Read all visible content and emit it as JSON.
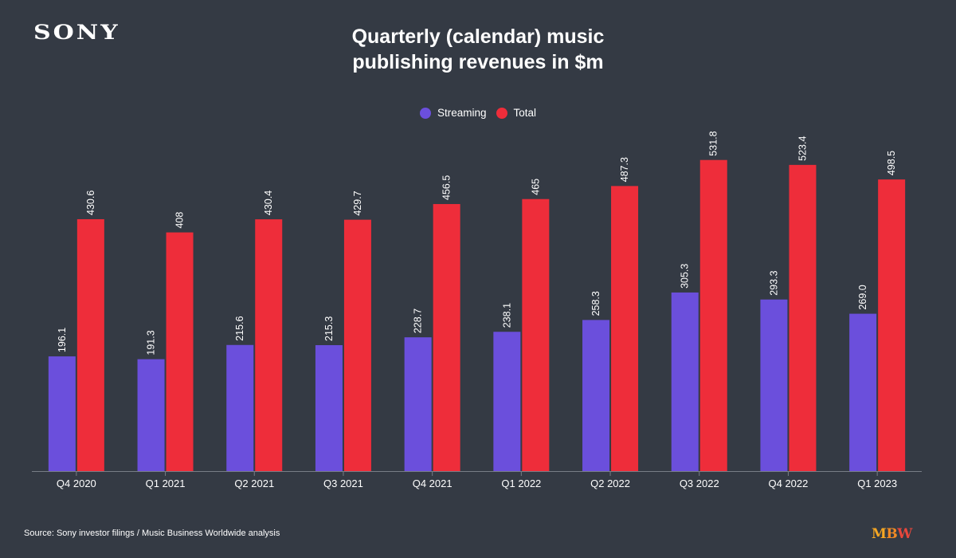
{
  "brand": {
    "logo_text": "SONY"
  },
  "footer": {
    "source": "Source: Sony investor filings / Music Business Worldwide analysis",
    "publisher_logo": [
      "M",
      "B",
      "W"
    ]
  },
  "colors": {
    "background": "#343a44",
    "streaming": "#6b4fdc",
    "total": "#ee2d3a",
    "axis": "#777d86"
  },
  "chart_data": {
    "type": "bar",
    "title_lines": [
      "Quarterly (calendar) music",
      "publishing revenues in $m"
    ],
    "xlabel": "",
    "ylabel": "",
    "ylim": [
      0,
      560
    ],
    "grid": false,
    "legend_position": "top-center",
    "categories": [
      "Q4 2020",
      "Q1 2021",
      "Q2 2021",
      "Q3 2021",
      "Q4 2021",
      "Q1 2022",
      "Q2 2022",
      "Q3 2022",
      "Q4 2022",
      "Q1 2023"
    ],
    "series": [
      {
        "name": "Streaming",
        "color": "#6b4fdc",
        "values": [
          196.1,
          191.3,
          215.6,
          215.3,
          228.7,
          238.1,
          258.3,
          305.3,
          293.3,
          269.0
        ],
        "labels": [
          "196.1",
          "191.3",
          "215.6",
          "215.3",
          "228.7",
          "238.1",
          "258.3",
          "305.3",
          "293.3",
          "269.0"
        ]
      },
      {
        "name": "Total",
        "color": "#ee2d3a",
        "values": [
          430.6,
          408,
          430.4,
          429.7,
          456.5,
          465,
          487.3,
          531.8,
          523.4,
          498.5
        ],
        "labels": [
          "430.6",
          "408",
          "430.4",
          "429.7",
          "456.5",
          "465",
          "487.3",
          "531.8",
          "523.4",
          "498.5"
        ]
      }
    ]
  }
}
